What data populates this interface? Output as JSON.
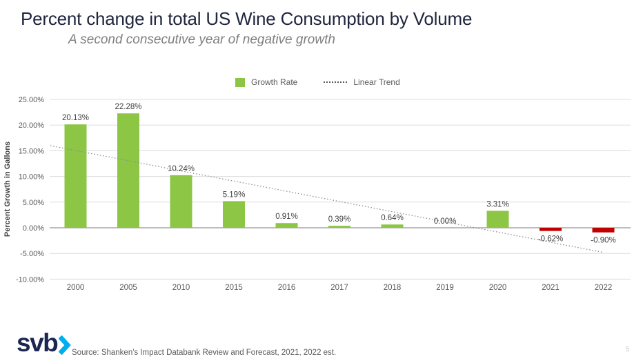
{
  "header": {
    "title": "Percent change in total US Wine Consumption by Volume",
    "subtitle": "A second consecutive year of negative growth"
  },
  "legend": {
    "growth_rate_label": "Growth Rate",
    "linear_trend_label": "Linear Trend"
  },
  "chart_data": {
    "type": "bar",
    "title": "Percent change in total US Wine Consumption by Volume",
    "subtitle": "A second consecutive year of negative growth",
    "xlabel": "",
    "ylabel": "Percent Growth in Gallons",
    "categories": [
      "2000",
      "2005",
      "2010",
      "2015",
      "2016",
      "2017",
      "2018",
      "2019",
      "2020",
      "2021",
      "2022"
    ],
    "values": [
      20.13,
      22.28,
      10.24,
      5.19,
      0.91,
      0.39,
      0.64,
      0.0,
      3.31,
      -0.62,
      -0.9
    ],
    "value_labels": [
      "20.13%",
      "22.28%",
      "10.24%",
      "5.19%",
      "0.91%",
      "0.39%",
      "0.64%",
      "0.00%",
      "3.31%",
      "-0.62%",
      "-0.90%"
    ],
    "series_name": "Growth Rate",
    "ylim": [
      -10,
      25
    ],
    "ytick_step": 5,
    "ytick_labels": [
      "25.00%",
      "20.00%",
      "15.00%",
      "10.00%",
      "5.00%",
      "0.00%",
      "-5.00%",
      "-10.00%"
    ],
    "grid": true,
    "legend_position": "top-center",
    "trend": {
      "name": "Linear Trend",
      "start_pct": 16.0,
      "end_pct": -4.8
    }
  },
  "colors": {
    "title_text": "#20273E",
    "subtitle_text": "#7F7F7F",
    "bar_positive": "#8CC644",
    "bar_negative": "#C00000",
    "trend_line": "#8C8C8C",
    "gridline": "#DCDCDC",
    "axis_line": "#A6A6A6",
    "axis_text": "#595959",
    "label_text": "#404040",
    "logo_navy": "#1B2653",
    "logo_blue": "#00AEEF"
  },
  "footer": {
    "logo_text": "svb",
    "source": "Source: Shanken's Impact Databank Review and Forecast, 2021, 2022 est.",
    "page_number": "5"
  }
}
